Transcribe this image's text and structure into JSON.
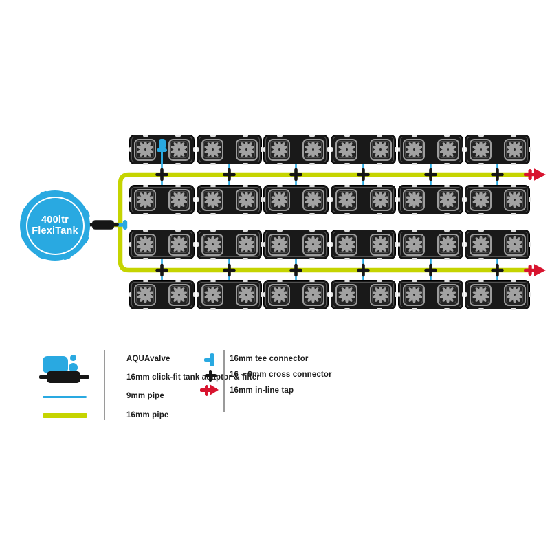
{
  "tank": {
    "label_line1": "400ltr",
    "label_line2": "FlexiTank"
  },
  "system": {
    "rows": 4,
    "trays_per_row": 6,
    "pots_per_tray": 2,
    "total_pots": 48,
    "aquavalve_shown_on": {
      "row": 1,
      "tray": 1
    },
    "inline_tap_count": 2
  },
  "colors": {
    "blue": "#29a9e1",
    "yellow_green": "#c5d400",
    "red": "#d8142f",
    "black": "#161616",
    "tray_dark": "#191919",
    "pot_gray": "#9c9c9c"
  },
  "legend": {
    "left": [
      {
        "icon": "aquavalve-icon",
        "label": "AQUAvalve"
      },
      {
        "icon": "tank-adaptor-icon",
        "label": "16mm click-fit tank adaptor & filter"
      },
      {
        "icon": "pipe-9mm-icon",
        "label": "9mm pipe"
      },
      {
        "icon": "pipe-16mm-icon",
        "label": "16mm pipe"
      }
    ],
    "right": [
      {
        "icon": "tee-connector-icon",
        "label": "16mm tee connector"
      },
      {
        "icon": "cross-connector-icon",
        "label": "16 – 9mm cross connector"
      },
      {
        "icon": "inline-tap-icon",
        "label": "16mm in-line tap"
      }
    ]
  }
}
